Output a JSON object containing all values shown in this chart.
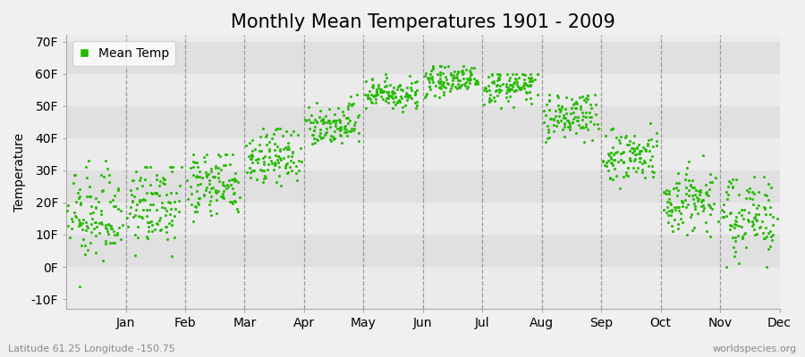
{
  "title": "Monthly Mean Temperatures 1901 - 2009",
  "ylabel": "Temperature",
  "xlabel_labels": [
    "Jan",
    "Feb",
    "Mar",
    "Apr",
    "May",
    "Jun",
    "Jul",
    "Aug",
    "Sep",
    "Oct",
    "Nov",
    "Dec"
  ],
  "ytick_labels": [
    "-10F",
    "0F",
    "10F",
    "20F",
    "30F",
    "40F",
    "50F",
    "60F",
    "70F"
  ],
  "ytick_values": [
    -10,
    0,
    10,
    20,
    30,
    40,
    50,
    60,
    70
  ],
  "ylim": [
    -13,
    72
  ],
  "dot_color": "#22bb00",
  "background_color": "#f0f0f0",
  "band_colors": [
    "#ebebeb",
    "#e0e0e0"
  ],
  "legend_label": "Mean Temp",
  "footnote_left": "Latitude 61.25 Longitude -150.75",
  "footnote_right": "worldspecies.org",
  "title_fontsize": 15,
  "axis_fontsize": 10,
  "tick_fontsize": 10,
  "dot_size": 5,
  "n_years": 109,
  "monthly_means": [
    14.5,
    18.0,
    24.5,
    33.5,
    44.0,
    53.5,
    57.5,
    55.5,
    46.5,
    33.5,
    20.0,
    15.0
  ],
  "monthly_stds": [
    7.0,
    6.5,
    5.5,
    4.5,
    3.5,
    2.5,
    2.0,
    2.5,
    3.5,
    4.5,
    5.5,
    6.5
  ],
  "monthly_mins": [
    -9.0,
    -2.0,
    5.0,
    20.0,
    36.0,
    47.0,
    52.0,
    49.0,
    38.0,
    22.0,
    5.0,
    0.0
  ],
  "monthly_maxs": [
    33.0,
    31.0,
    35.0,
    43.0,
    54.0,
    61.0,
    62.5,
    60.0,
    53.5,
    46.0,
    35.0,
    28.0
  ],
  "month_trend": [
    0.02,
    0.015,
    0.01,
    0.01,
    0.01,
    0.01,
    0.01,
    0.01,
    0.01,
    0.01,
    0.01,
    0.02
  ]
}
